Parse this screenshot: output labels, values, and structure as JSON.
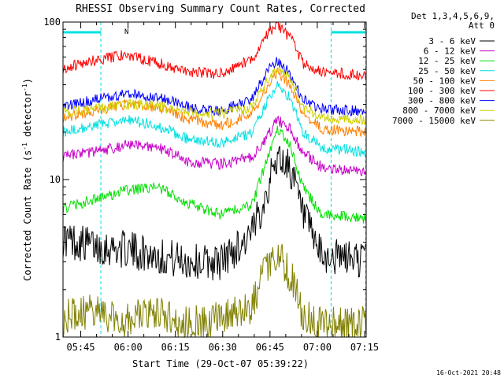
{
  "chart_data": {
    "type": "line",
    "title": "RHESSI Observing Summary Count Rates, Corrected",
    "xlabel": "Start Time (29-Oct-07 05:39:22)",
    "ylabel": "Corrected Count Rate (s",
    "ylabel_sup1": "-1",
    "ylabel_mid": " detector",
    "ylabel_sup2": "-1",
    "ylabel_end": ")",
    "y_scale": "log",
    "ylim": [
      1,
      100
    ],
    "xlim": [
      "05:39:22",
      "07:15:30"
    ],
    "x_ticks": [
      "05:45",
      "06:00",
      "06:15",
      "06:30",
      "06:45",
      "07:00",
      "07:15"
    ],
    "y_ticks": [
      "1",
      "10",
      "100"
    ],
    "grid": false,
    "legend_header": [
      "Det 1,3,4,5,6,9,",
      "Att 0"
    ],
    "legend_position": "right",
    "flag_label": "N",
    "timestamp": "16-Oct-2021 20:48",
    "x_minutes": [
      0,
      10,
      20,
      30,
      40,
      50,
      60,
      65,
      68,
      72,
      76,
      82,
      90,
      96
    ],
    "series": [
      {
        "name": "3 - 6 keV",
        "color": "#000000",
        "values": [
          4.2,
          3.8,
          3.6,
          3.3,
          3.0,
          3.0,
          4.5,
          9.0,
          14.0,
          12.0,
          6.0,
          3.2,
          3.2,
          3.1
        ]
      },
      {
        "name": "6 - 12 keV",
        "color": "#c800c8",
        "values": [
          14.0,
          15.0,
          16.5,
          16.0,
          13.0,
          12.5,
          14.0,
          19.0,
          24.0,
          21.0,
          15.0,
          12.0,
          11.5,
          11.0
        ]
      },
      {
        "name": "12 - 25 keV",
        "color": "#00e000",
        "values": [
          6.5,
          7.5,
          8.5,
          9.0,
          7.0,
          6.0,
          7.0,
          14.0,
          21.0,
          17.0,
          9.0,
          6.0,
          5.8,
          5.6
        ]
      },
      {
        "name": "25 - 50 keV",
        "color": "#00e0e0",
        "values": [
          20.0,
          22.0,
          24.0,
          22.0,
          18.0,
          17.0,
          20.0,
          32.0,
          40.0,
          33.0,
          20.0,
          16.0,
          15.5,
          15.0
        ]
      },
      {
        "name": "50 - 100 keV",
        "color": "#ff8000",
        "values": [
          25.0,
          27.0,
          30.0,
          29.0,
          24.0,
          22.0,
          26.0,
          40.0,
          48.0,
          40.0,
          26.0,
          21.0,
          20.5,
          20.0
        ]
      },
      {
        "name": "100 - 300 keV",
        "color": "#ff0000",
        "values": [
          51.0,
          57.0,
          62.0,
          55.0,
          48.0,
          47.0,
          58.0,
          85.0,
          96.0,
          80.0,
          55.0,
          48.0,
          47.0,
          46.0
        ]
      },
      {
        "name": "300 - 800 keV",
        "color": "#0000ff",
        "values": [
          29.0,
          32.0,
          35.0,
          33.0,
          29.0,
          27.0,
          33.0,
          50.0,
          57.0,
          47.0,
          32.0,
          28.0,
          27.5,
          27.0
        ]
      },
      {
        "name": "800 - 7000 keV",
        "color": "#d0d000",
        "values": [
          27.0,
          28.0,
          30.0,
          29.0,
          27.0,
          26.0,
          29.0,
          44.0,
          52.0,
          44.0,
          29.0,
          25.0,
          24.5,
          24.0
        ]
      },
      {
        "name": "7000 - 15000 keV",
        "color": "#808000",
        "values": [
          1.3,
          1.5,
          1.3,
          1.4,
          1.2,
          1.3,
          1.6,
          3.0,
          3.5,
          2.5,
          1.4,
          1.2,
          1.2,
          1.2
        ]
      }
    ],
    "attenuator_intervals": [
      [
        0,
        12
      ],
      [
        85,
        96
      ]
    ],
    "attenuator_color": "#00e0e0"
  }
}
